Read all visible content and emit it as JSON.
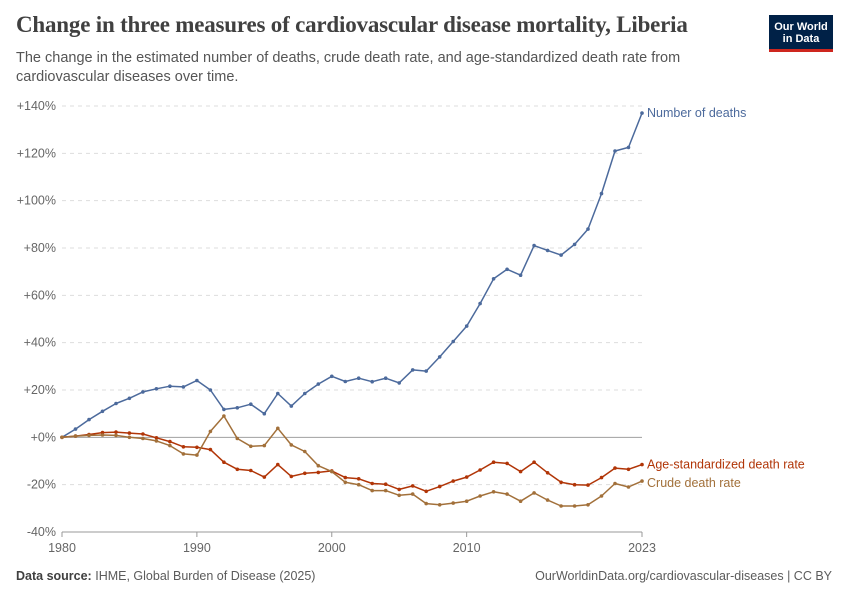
{
  "header": {
    "title": "Change in three measures of cardiovascular disease mortality, Liberia",
    "subtitle": "The change in the estimated number of deaths, crude death rate, and age-standardized death rate from cardiovascular diseases over time.",
    "logo_line1": "Our World",
    "logo_line2": "in Data"
  },
  "footer": {
    "source_label": "Data source:",
    "source_text": "IHME, Global Burden of Disease (2025)",
    "url_license": "OurWorldinData.org/cardiovascular-diseases | CC BY"
  },
  "colors": {
    "deaths": "#4c6a9c",
    "age_standardized": "#b13507",
    "crude": "#a2703a",
    "grid": "#dddddd",
    "zero_line": "#a0a0a0",
    "axis_text": "#666666"
  },
  "chart_data": {
    "type": "line",
    "x_start": 1980,
    "x_end": 2023,
    "ylim": [
      -40,
      140
    ],
    "y_ticks": [
      -40,
      -20,
      0,
      20,
      40,
      60,
      80,
      100,
      120,
      140
    ],
    "y_tick_labels": [
      "-40%",
      "-20%",
      "+0%",
      "+20%",
      "+40%",
      "+60%",
      "+80%",
      "+100%",
      "+120%",
      "+140%"
    ],
    "x_ticks": [
      1980,
      1990,
      2000,
      2010,
      2023
    ],
    "x_tick_labels": [
      "1980",
      "1990",
      "2000",
      "2010",
      "2023"
    ],
    "grid": "horizontal dashed",
    "legend": "line-end labels on the right",
    "series": [
      {
        "name": "Number of deaths",
        "color_key": "deaths",
        "values": [
          0,
          3.5,
          7.5,
          11,
          14.3,
          16.5,
          19.2,
          20.5,
          21.6,
          21.3,
          24,
          20,
          11.8,
          12.5,
          14,
          10,
          18.5,
          13.2,
          18.5,
          22.5,
          25.8,
          23.6,
          25,
          23.5,
          25,
          23,
          28.5,
          28,
          34,
          40.5,
          47,
          56.5,
          67,
          71,
          68.5,
          81,
          79,
          77,
          81.5,
          88,
          103,
          121,
          122.5,
          137
        ]
      },
      {
        "name": "Age-standardized death rate",
        "color_key": "age_standardized",
        "values": [
          0,
          0.5,
          1.2,
          2,
          2.2,
          1.8,
          1.4,
          -0.2,
          -1.8,
          -4,
          -4.2,
          -5.2,
          -10.5,
          -13.5,
          -14,
          -16.8,
          -11.5,
          -16.5,
          -15.2,
          -14.8,
          -14.2,
          -17,
          -17.5,
          -19.5,
          -19.8,
          -22,
          -20.5,
          -22.8,
          -20.8,
          -18.5,
          -16.8,
          -13.8,
          -10.5,
          -11,
          -14.5,
          -10.5,
          -15,
          -19,
          -20,
          -20.2,
          -17,
          -13,
          -13.5,
          -11.5
        ]
      },
      {
        "name": "Crude death rate",
        "color_key": "crude",
        "values": [
          0,
          0.5,
          0.8,
          1,
          0.8,
          0,
          -0.5,
          -1.5,
          -3.5,
          -7,
          -7.5,
          2.5,
          9,
          -0.5,
          -3.8,
          -3.5,
          3.8,
          -3.2,
          -6,
          -12,
          -14.5,
          -19,
          -20,
          -22.5,
          -22.5,
          -24.5,
          -24,
          -28,
          -28.5,
          -27.8,
          -27,
          -24.8,
          -23,
          -24,
          -27,
          -23.5,
          -26.5,
          -29,
          -29,
          -28.5,
          -24.8,
          -19.5,
          -21,
          -18.5
        ]
      }
    ]
  }
}
